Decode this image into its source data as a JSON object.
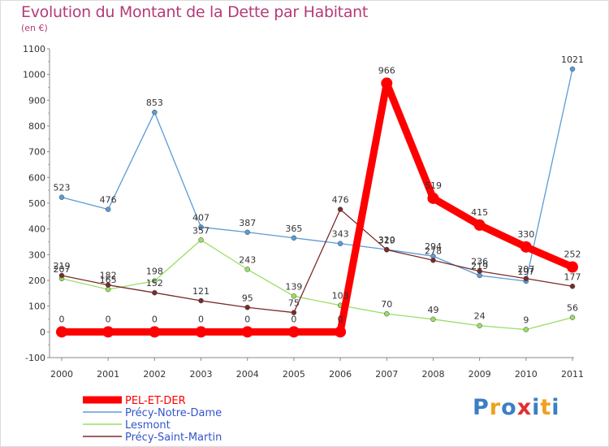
{
  "title": "Evolution du Montant de la Dette par Habitant",
  "subtitle": "(en €)",
  "logo": {
    "text": "Proxiti",
    "colors": [
      "#3b7fc4",
      "#f0a020",
      "#3b7fc4",
      "#e03030",
      "#3b7fc4",
      "#f0a020",
      "#3b7fc4"
    ]
  },
  "chart_data": {
    "type": "line",
    "title": "Evolution du Montant de la Dette par Habitant",
    "ylabel": "(en €)",
    "xlabel": "",
    "ylim": [
      -100,
      1100
    ],
    "yticks": [
      -100,
      0,
      100,
      200,
      300,
      400,
      500,
      600,
      700,
      800,
      900,
      1000,
      1100
    ],
    "grid": false,
    "legend": "bottom-left",
    "x": [
      "2000",
      "2001",
      "2002",
      "2003",
      "2004",
      "2005",
      "2006",
      "2007",
      "2008",
      "2009",
      "2010",
      "2011"
    ],
    "series": [
      {
        "name": "PEL-ET-DER",
        "color": "#ff0000",
        "values": [
          0,
          0,
          0,
          0,
          0,
          0,
          0,
          966,
          519,
          415,
          330,
          252
        ]
      },
      {
        "name": "Précy-Notre-Dame",
        "color": "#5b9bd5",
        "values": [
          523,
          476,
          853,
          407,
          387,
          365,
          343,
          320,
          294,
          219,
          197,
          1021
        ]
      },
      {
        "name": "Lesmont",
        "color": "#99dd66",
        "values": [
          207,
          165,
          198,
          357,
          243,
          139,
          103,
          70,
          49,
          24,
          9,
          56
        ]
      },
      {
        "name": "Précy-Saint-Martin",
        "color": "#7a2a2a",
        "values": [
          219,
          182,
          152,
          121,
          95,
          75,
          476,
          319,
          278,
          236,
          207,
          177
        ]
      }
    ]
  }
}
